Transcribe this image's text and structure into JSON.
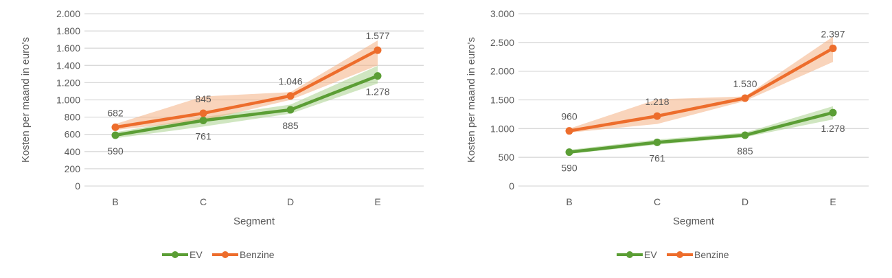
{
  "colors": {
    "ev": "#5B9E35",
    "benzine": "#ED6D2C",
    "ev_band": "#A9D18E",
    "benzine_band": "#F4B183",
    "grid": "#D9D9D9",
    "text": "#595959"
  },
  "chart_data": [
    {
      "type": "line",
      "title": "",
      "xlabel": "Segment",
      "ylabel": "Kosten per maand in euro's",
      "categories": [
        "B",
        "C",
        "D",
        "E"
      ],
      "ylim": [
        0,
        2000
      ],
      "yticks": [
        0,
        200,
        400,
        600,
        800,
        1000,
        1200,
        1400,
        1600,
        1800,
        2000
      ],
      "ytick_labels": [
        "0",
        "200",
        "400",
        "600",
        "800",
        "1.000",
        "1.200",
        "1.400",
        "1.600",
        "1.800",
        "2.000"
      ],
      "grid": true,
      "legend_position": "bottom",
      "series": [
        {
          "name": "EV",
          "values": [
            590,
            761,
            885,
            1278
          ],
          "labels": [
            "590",
            "761",
            "885",
            "1.278"
          ],
          "band_low": [
            555,
            690,
            840,
            1190
          ],
          "band_high": [
            625,
            800,
            945,
            1395
          ]
        },
        {
          "name": "Benzine",
          "values": [
            682,
            845,
            1046,
            1577
          ],
          "labels": [
            "682",
            "845",
            "1.046",
            "1.577"
          ],
          "band_low": [
            650,
            760,
            1000,
            1400
          ],
          "band_high": [
            720,
            1040,
            1090,
            1690
          ]
        }
      ]
    },
    {
      "type": "line",
      "title": "",
      "xlabel": "Segment",
      "ylabel": "Kosten per maand in euro's",
      "categories": [
        "B",
        "C",
        "D",
        "E"
      ],
      "ylim": [
        0,
        3000
      ],
      "yticks": [
        0,
        500,
        1000,
        1500,
        2000,
        2500,
        3000
      ],
      "ytick_labels": [
        "0",
        "500",
        "1.000",
        "1.500",
        "2.000",
        "2.500",
        "3.000"
      ],
      "grid": true,
      "legend_position": "bottom",
      "series": [
        {
          "name": "EV",
          "values": [
            590,
            761,
            885,
            1278
          ],
          "labels": [
            "590",
            "761",
            "885",
            "1.278"
          ],
          "band_low": [
            560,
            720,
            850,
            1160
          ],
          "band_high": [
            630,
            810,
            930,
            1390
          ]
        },
        {
          "name": "Benzine",
          "values": [
            960,
            1218,
            1530,
            2397
          ],
          "labels": [
            "960",
            "1.218",
            "1.530",
            "2.397"
          ],
          "band_low": [
            930,
            1080,
            1480,
            2160
          ],
          "band_high": [
            1000,
            1510,
            1560,
            2600
          ]
        }
      ]
    }
  ],
  "legend": {
    "items": [
      {
        "label": "EV"
      },
      {
        "label": "Benzine"
      }
    ]
  }
}
